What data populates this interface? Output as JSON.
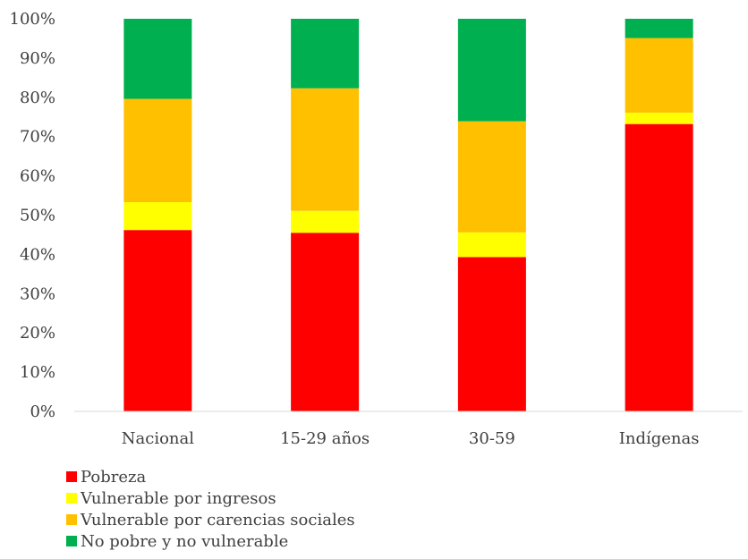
{
  "chart_data": {
    "type": "bar",
    "stacked": true,
    "categories": [
      "Nacional",
      "15-29 años",
      "30-59",
      "Indígenas"
    ],
    "series": [
      {
        "name": "Pobreza",
        "color": "#ff0000",
        "values": [
          46.2,
          45.5,
          39.3,
          73.2
        ]
      },
      {
        "name": "Vulnerable por ingresos",
        "color": "#ffff00",
        "values": [
          7.1,
          5.6,
          6.3,
          2.9
        ]
      },
      {
        "name": "Vulnerable por carencias sociales",
        "color": "#ffc000",
        "values": [
          26.3,
          31.2,
          28.3,
          19.0
        ]
      },
      {
        "name": "No pobre y no vulnerable",
        "color": "#00b050",
        "values": [
          20.4,
          17.7,
          26.1,
          4.9
        ]
      }
    ],
    "y_ticks": [
      "0%",
      "10%",
      "20%",
      "30%",
      "40%",
      "50%",
      "60%",
      "70%",
      "80%",
      "90%",
      "100%"
    ],
    "ylim": [
      0,
      100
    ],
    "title": "",
    "xlabel": "",
    "ylabel": "",
    "grid": false,
    "legend_position": "bottom-left"
  }
}
